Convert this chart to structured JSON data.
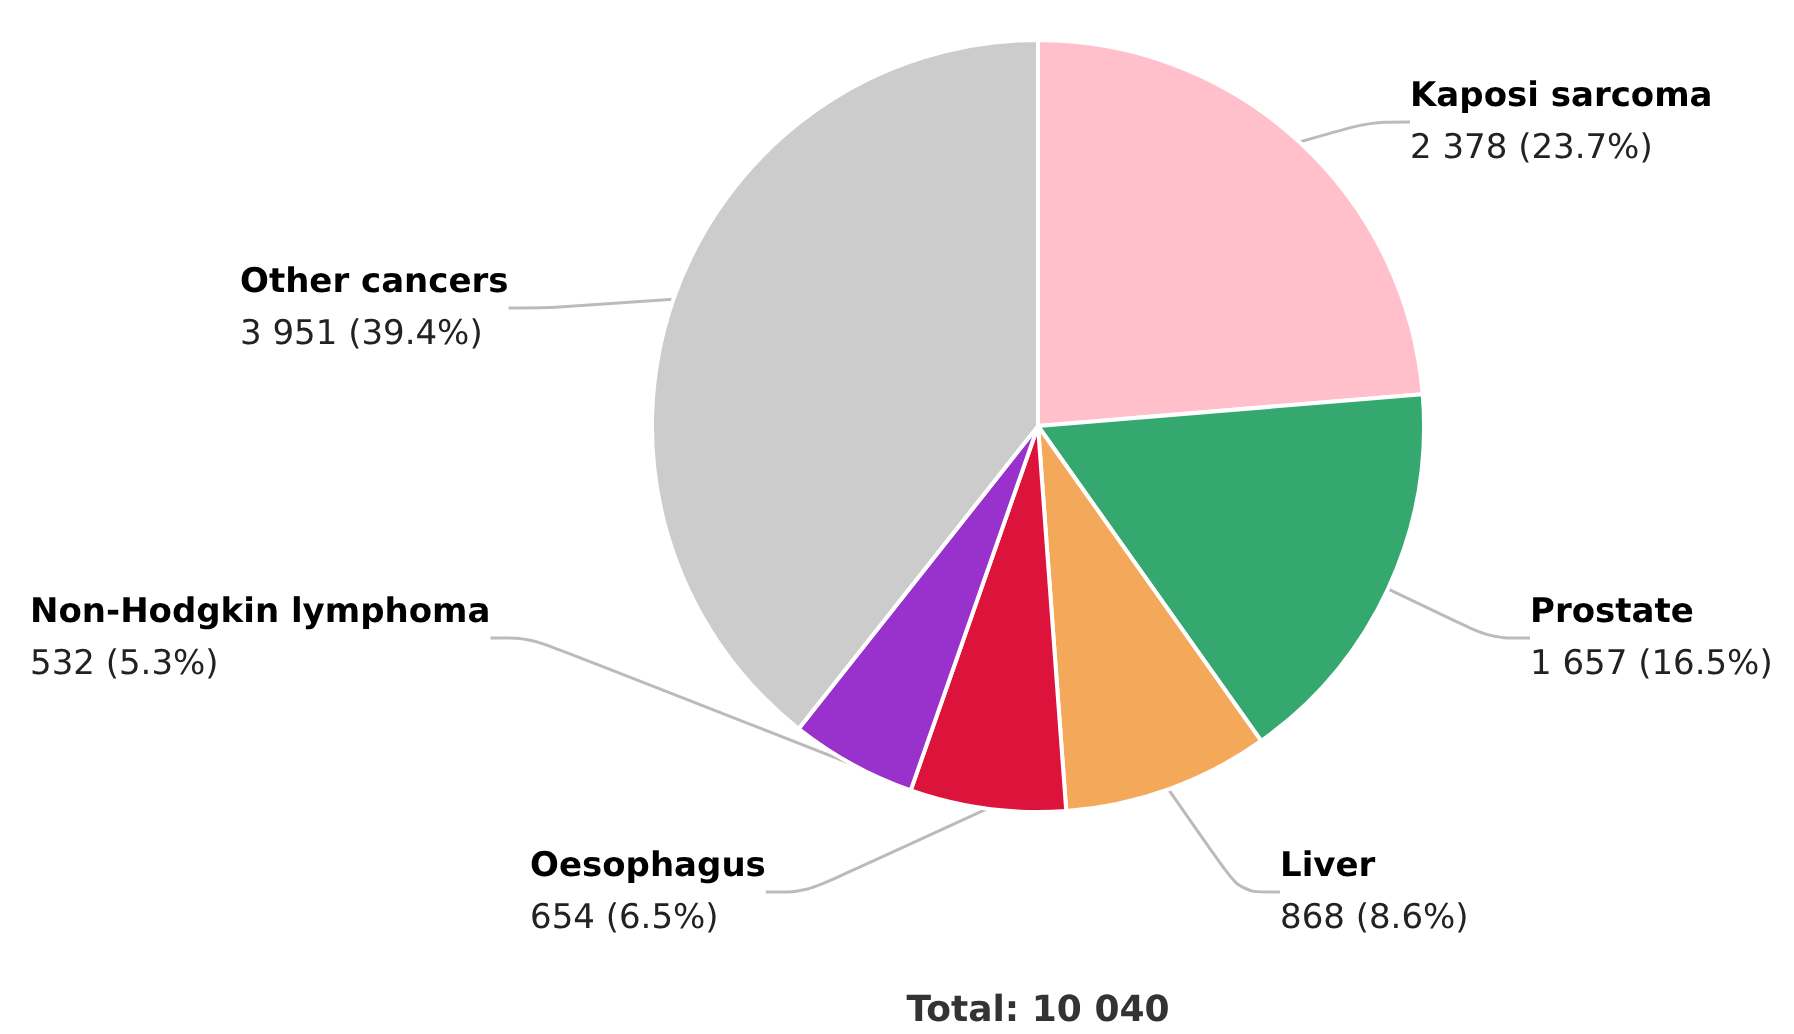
{
  "chart_data": {
    "type": "pie",
    "categories": [
      "Kaposi sarcoma",
      "Prostate",
      "Liver",
      "Oesophagus",
      "Non-Hodgkin lymphoma",
      "Other cancers"
    ],
    "values": [
      2378,
      1657,
      868,
      654,
      532,
      3951
    ],
    "colors": [
      "#ffc0cb",
      "#35a86f",
      "#f4a85a",
      "#dc143c",
      "#9932cc",
      "#cccccc"
    ],
    "value_labels": [
      "2 378 (23.7%)",
      "1 657 (16.5%)",
      "868 (8.6%)",
      "654 (6.5%)",
      "532 (5.3%)",
      "3 951 (39.4%)"
    ],
    "annotations": [
      "Total: 10 040"
    ]
  }
}
